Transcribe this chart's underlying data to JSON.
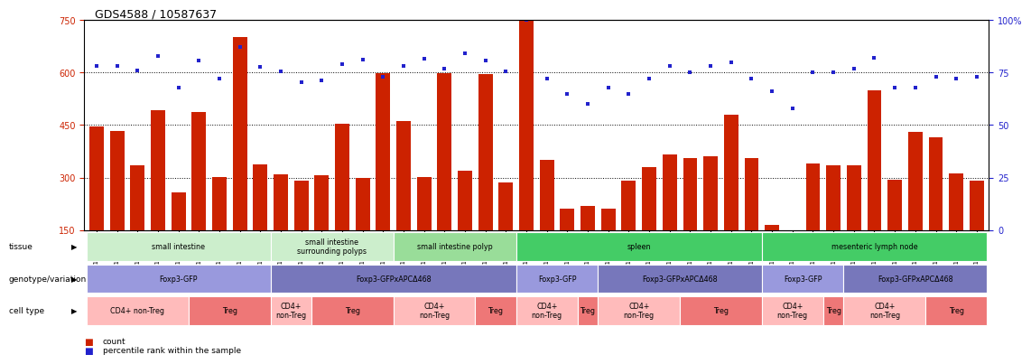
{
  "title": "GDS4588 / 10587637",
  "samples": [
    "GSM1011468",
    "GSM1011469",
    "GSM1011477",
    "GSM1011478",
    "GSM1011482",
    "GSM1011497",
    "GSM1011498",
    "GSM1011466",
    "GSM1011467",
    "GSM1011499",
    "GSM1011489",
    "GSM1011504",
    "GSM1011476",
    "GSM1011490",
    "GSM1011505",
    "GSM1011475",
    "GSM1011487",
    "GSM1011506",
    "GSM1011474",
    "GSM1011488",
    "GSM1011507",
    "GSM1011479",
    "GSM1011494",
    "GSM1011495",
    "GSM1011480",
    "GSM1011496",
    "GSM1011473",
    "GSM1011484",
    "GSM1011502",
    "GSM1011472",
    "GSM1011483",
    "GSM1011503",
    "GSM1011465",
    "GSM1011491",
    "GSM1011492",
    "GSM1011464",
    "GSM1011481",
    "GSM1011493",
    "GSM1011471",
    "GSM1011486",
    "GSM1011500",
    "GSM1011470",
    "GSM1011485",
    "GSM1011501"
  ],
  "counts": [
    447,
    432,
    335,
    492,
    258,
    486,
    302,
    700,
    337,
    310,
    290,
    307,
    453,
    300,
    598,
    462,
    302,
    597,
    320,
    595,
    285,
    750,
    350,
    210,
    220,
    210,
    290,
    330,
    365,
    355,
    360,
    480,
    355,
    165,
    130,
    340,
    335,
    335,
    550,
    295,
    430,
    415,
    312,
    292
  ],
  "pcts_left_axis": [
    618,
    618,
    605,
    648,
    558,
    633,
    583,
    673,
    615,
    603,
    572,
    578,
    623,
    638,
    588,
    618,
    640,
    610,
    655,
    633,
    602,
    750
  ],
  "pcts_right_axis": [
    72,
    65,
    60,
    68,
    65,
    72,
    78,
    75,
    78,
    80,
    72,
    66,
    58,
    75,
    75,
    77,
    82,
    68,
    68,
    73,
    72,
    73
  ],
  "ylim_left": [
    150,
    750
  ],
  "ylim_right": [
    0,
    100
  ],
  "yticks_left": [
    150,
    300,
    450,
    600,
    750
  ],
  "yticks_right": [
    0,
    25,
    50,
    75,
    100
  ],
  "bar_color": "#cc2200",
  "dot_color": "#2222cc",
  "tissue_groups": [
    {
      "label": "small intestine",
      "start": 0,
      "end": 8,
      "color": "#cceecc"
    },
    {
      "label": "small intestine\nsurrounding polyps",
      "start": 9,
      "end": 14,
      "color": "#cceecc"
    },
    {
      "label": "small intestine polyp",
      "start": 15,
      "end": 20,
      "color": "#99dd99"
    },
    {
      "label": "spleen",
      "start": 21,
      "end": 32,
      "color": "#44cc66"
    },
    {
      "label": "mesenteric lymph node",
      "start": 33,
      "end": 43,
      "color": "#44cc66"
    }
  ],
  "genotype_groups": [
    {
      "label": "Foxp3-GFP",
      "start": 0,
      "end": 8,
      "color": "#9999dd"
    },
    {
      "label": "Foxp3-GFPxAPCΔ468",
      "start": 9,
      "end": 20,
      "color": "#7777bb"
    },
    {
      "label": "Foxp3-GFP",
      "start": 21,
      "end": 24,
      "color": "#9999dd"
    },
    {
      "label": "Foxp3-GFPxAPCΔ468",
      "start": 25,
      "end": 32,
      "color": "#7777bb"
    },
    {
      "label": "Foxp3-GFP",
      "start": 33,
      "end": 36,
      "color": "#9999dd"
    },
    {
      "label": "Foxp3-GFPxAPCΔ468",
      "start": 37,
      "end": 43,
      "color": "#7777bb"
    }
  ],
  "celltype_groups": [
    {
      "label": "CD4+ non-Treg",
      "start": 0,
      "end": 4,
      "color": "#ffbbbb"
    },
    {
      "label": "Treg",
      "start": 5,
      "end": 8,
      "color": "#ee7777"
    },
    {
      "label": "CD4+\nnon-Treg",
      "start": 9,
      "end": 10,
      "color": "#ffbbbb"
    },
    {
      "label": "Treg",
      "start": 11,
      "end": 14,
      "color": "#ee7777"
    },
    {
      "label": "CD4+\nnon-Treg",
      "start": 15,
      "end": 18,
      "color": "#ffbbbb"
    },
    {
      "label": "Treg",
      "start": 19,
      "end": 20,
      "color": "#ee7777"
    },
    {
      "label": "CD4+\nnon-Treg",
      "start": 21,
      "end": 23,
      "color": "#ffbbbb"
    },
    {
      "label": "Treg",
      "start": 24,
      "end": 24,
      "color": "#ee7777"
    },
    {
      "label": "CD4+\nnon-Treg",
      "start": 25,
      "end": 28,
      "color": "#ffbbbb"
    },
    {
      "label": "Treg",
      "start": 29,
      "end": 32,
      "color": "#ee7777"
    },
    {
      "label": "CD4+\nnon-Treg",
      "start": 33,
      "end": 35,
      "color": "#ffbbbb"
    },
    {
      "label": "Treg",
      "start": 36,
      "end": 36,
      "color": "#ee7777"
    },
    {
      "label": "CD4+\nnon-Treg",
      "start": 37,
      "end": 40,
      "color": "#ffbbbb"
    },
    {
      "label": "Treg",
      "start": 41,
      "end": 43,
      "color": "#ee7777"
    }
  ],
  "row_labels": [
    "tissue",
    "genotype/variation",
    "cell type"
  ],
  "legend_items": [
    {
      "label": "count",
      "color": "#cc2200"
    },
    {
      "label": "percentile rank within the sample",
      "color": "#2222cc"
    }
  ]
}
